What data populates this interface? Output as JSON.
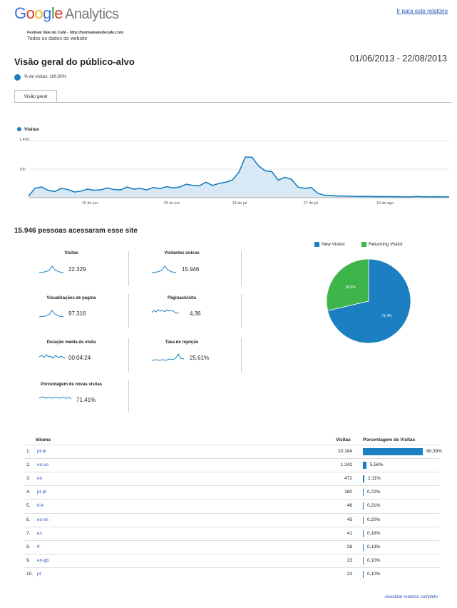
{
  "header": {
    "logo_parts": [
      "G",
      "o",
      "o",
      "g",
      "l",
      "e"
    ],
    "logo_suffix": "Analytics",
    "top_link": "Ir para este relatório",
    "site_line": "Festival Vale do Café - http://festivalvaledocafe.com",
    "all_data": "Todos os dados do website",
    "title": "Visão geral do público-alvo",
    "date_range": "01/06/2013 - 22/08/2013",
    "segment": "% de visitas: 100,00%",
    "tab": "Visão geral"
  },
  "colors": {
    "accent": "#1b7fc1",
    "returning": "#3db54a",
    "link": "#2a58b5"
  },
  "chart_data": [
    {
      "type": "area",
      "series": [
        {
          "name": "Visitas",
          "values": [
            40,
            230,
            260,
            180,
            150,
            230,
            200,
            140,
            160,
            210,
            180,
            190,
            240,
            200,
            190,
            260,
            210,
            230,
            190,
            250,
            220,
            270,
            240,
            260,
            330,
            300,
            290,
            380,
            300,
            350,
            380,
            430,
            620,
            1000,
            990,
            780,
            660,
            640,
            430,
            500,
            450,
            260,
            230,
            250,
            110,
            60,
            50,
            40,
            40,
            35,
            30,
            30,
            30,
            25,
            30,
            25,
            25,
            20,
            20,
            30,
            25,
            20,
            25,
            20,
            20
          ]
        }
      ],
      "x_tick_labels": [
        "15 de jun",
        "29 de jun",
        "13 de jul",
        "27 de jul",
        "10 de ago"
      ],
      "y_tick_labels": [
        "1.400",
        "700"
      ],
      "ylim": [
        0,
        1400
      ]
    },
    {
      "type": "pie",
      "categories": [
        "New Visitor",
        "Returning Visitor"
      ],
      "values": [
        71.4,
        28.6
      ],
      "slice_labels": [
        "71,4%",
        "28,6%"
      ]
    }
  ],
  "summary": {
    "title": "15.946 pessoas acessaram esse site",
    "metrics": [
      {
        "name": "Visitas",
        "value": "22.329"
      },
      {
        "name": "Visitantes únicos",
        "value": "15.946"
      },
      {
        "name": "Visualizações de página",
        "value": "97.316"
      },
      {
        "name": "Páginas/visita",
        "value": "4,36"
      },
      {
        "name": "Duração média da visita",
        "value": "00:04:24"
      },
      {
        "name": "Taxa de rejeição",
        "value": "25,61%"
      },
      {
        "name": "Porcentagem de novas visitas",
        "value": "71,41%"
      }
    ]
  },
  "table": {
    "headers": [
      "Idioma",
      "Visitas",
      "Porcentagem de Visitas"
    ],
    "rows": [
      {
        "idx": "1.",
        "lang": "pt-br",
        "visits": "20.184",
        "pct": "90,39%",
        "frac": 0.9039
      },
      {
        "idx": "2.",
        "lang": "en-us",
        "visits": "1.242",
        "pct": "5,56%",
        "frac": 0.0556
      },
      {
        "idx": "3.",
        "lang": "en",
        "visits": "472",
        "pct": "2,11%",
        "frac": 0.0211
      },
      {
        "idx": "4.",
        "lang": "pt-pt",
        "visits": "160",
        "pct": "0,72%",
        "frac": 0.0072
      },
      {
        "idx": "5.",
        "lang": "it-it",
        "visits": "46",
        "pct": "0,21%",
        "frac": 0.0021
      },
      {
        "idx": "6.",
        "lang": "es-es",
        "visits": "45",
        "pct": "0,20%",
        "frac": 0.002
      },
      {
        "idx": "7.",
        "lang": "es",
        "visits": "41",
        "pct": "0,18%",
        "frac": 0.0018
      },
      {
        "idx": "8.",
        "lang": "fr",
        "visits": "28",
        "pct": "0,13%",
        "frac": 0.0013
      },
      {
        "idx": "9.",
        "lang": "en-gb",
        "visits": "23",
        "pct": "0,10%",
        "frac": 0.001
      },
      {
        "idx": "10.",
        "lang": "pt",
        "visits": "23",
        "pct": "0,10%",
        "frac": 0.001
      }
    ],
    "full_report": "visualizar relatório completo"
  }
}
